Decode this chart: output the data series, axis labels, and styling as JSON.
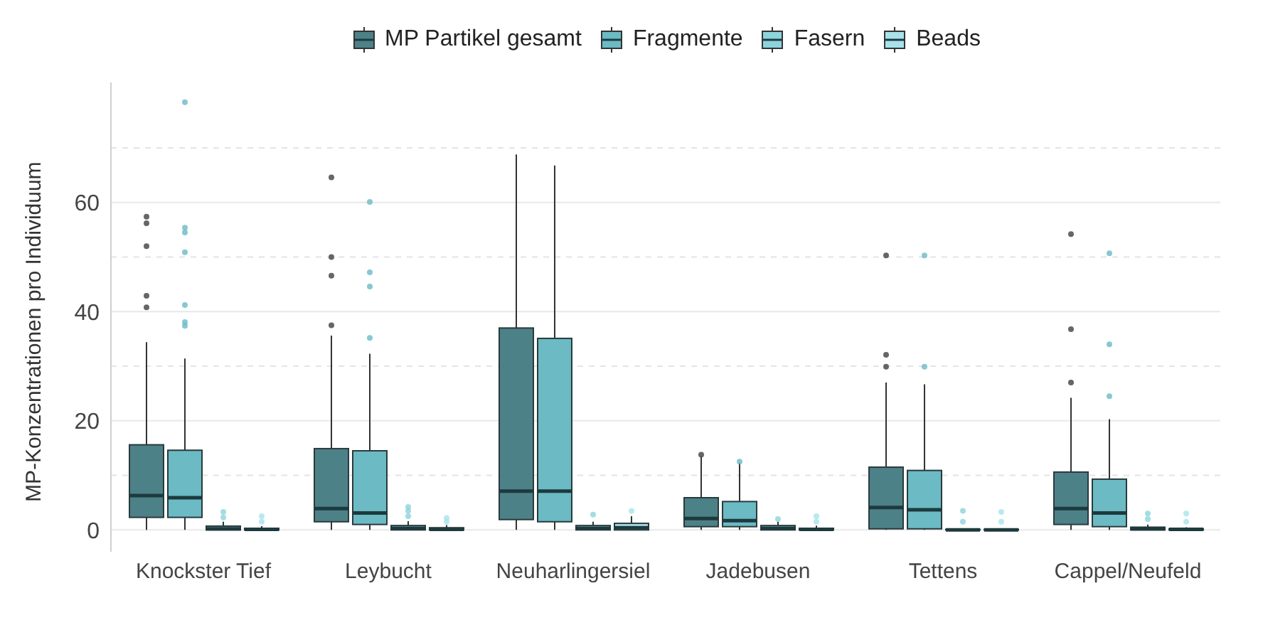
{
  "chart_data": {
    "type": "box",
    "ylabel": "MP-Konzentrationen pro Individuum",
    "categories": [
      "Knockster Tief",
      "Leybucht",
      "Neuharlingersiel",
      "Jadebusen",
      "Tettens",
      "Cappel/Neufeld"
    ],
    "ylim": [
      -4,
      82
    ],
    "yticks": [
      0,
      {
        "value": 10,
        "label": null
      },
      20,
      {
        "value": 30,
        "label": null
      },
      40,
      {
        "value": 50,
        "label": null
      },
      60,
      {
        "value": 70,
        "label": null
      }
    ],
    "grid": "y",
    "legend": "top",
    "series": [
      {
        "name": "MP Partikel gesamt",
        "color": "#4d8188",
        "boxes": [
          {
            "low": 0,
            "q1": 2.3,
            "median": 6.3,
            "q3": 15.6,
            "high": 34.4,
            "outliers": [
              57.4,
              56.2,
              52.0,
              42.9,
              40.8
            ]
          },
          {
            "low": 0,
            "q1": 1.5,
            "median": 3.9,
            "q3": 14.9,
            "high": 35.6,
            "outliers": [
              64.6,
              50.0,
              46.6,
              37.5
            ]
          },
          {
            "low": 0,
            "q1": 1.9,
            "median": 7.1,
            "q3": 37.0,
            "high": 68.8
          },
          {
            "low": 0,
            "q1": 0.6,
            "median": 2.1,
            "q3": 5.9,
            "high": 13.6,
            "outliers": [
              13.8
            ]
          },
          {
            "low": 0,
            "q1": 0.2,
            "median": 4.1,
            "q3": 11.5,
            "high": 27.0,
            "outliers": [
              50.3,
              32.1,
              29.9
            ]
          },
          {
            "low": 0,
            "q1": 1.0,
            "median": 3.9,
            "q3": 10.6,
            "high": 24.2,
            "outliers": [
              54.2,
              36.8,
              27.0
            ]
          }
        ]
      },
      {
        "name": "Fragmente",
        "color": "#6bbac4",
        "boxes": [
          {
            "low": 0,
            "q1": 2.3,
            "median": 5.9,
            "q3": 14.6,
            "high": 31.4,
            "outliers": [
              78.4,
              55.4,
              54.5,
              50.9,
              41.2,
              38.1,
              37.4
            ]
          },
          {
            "low": 0,
            "q1": 1.0,
            "median": 3.1,
            "q3": 14.5,
            "high": 32.3,
            "outliers": [
              60.1,
              47.2,
              44.6,
              35.2
            ]
          },
          {
            "low": 0,
            "q1": 1.5,
            "median": 7.1,
            "q3": 35.1,
            "high": 66.8
          },
          {
            "low": 0,
            "q1": 0.6,
            "median": 1.7,
            "q3": 5.2,
            "high": 12.3,
            "outliers": [
              12.5
            ]
          },
          {
            "low": 0,
            "q1": 0.2,
            "median": 3.7,
            "q3": 10.9,
            "high": 26.7,
            "outliers": [
              50.3,
              29.9
            ]
          },
          {
            "low": 0,
            "q1": 0.6,
            "median": 3.1,
            "q3": 9.3,
            "high": 20.3,
            "outliers": [
              50.7,
              34.0,
              24.5
            ]
          }
        ]
      },
      {
        "name": "Fasern",
        "color": "#8dd3dc",
        "boxes": [
          {
            "low": 0,
            "q1": 0,
            "median": 0.2,
            "q3": 0.7,
            "high": 1.5,
            "outliers": [
              2.3,
              3.3
            ]
          },
          {
            "low": 0,
            "q1": 0,
            "median": 0.3,
            "q3": 0.8,
            "high": 1.6,
            "outliers": [
              2.5,
              3.5,
              4.2
            ]
          },
          {
            "low": 0,
            "q1": 0,
            "median": 0.3,
            "q3": 0.8,
            "high": 1.5,
            "outliers": [
              2.8
            ]
          },
          {
            "low": 0,
            "q1": 0,
            "median": 0.3,
            "q3": 0.8,
            "high": 1.5,
            "outliers": [
              2.0
            ]
          },
          {
            "low": 0,
            "q1": 0,
            "median": 0,
            "q3": 0.1,
            "high": 0.2,
            "outliers": [
              1.5,
              3.5
            ]
          },
          {
            "low": 0,
            "q1": 0,
            "median": 0.2,
            "q3": 0.5,
            "high": 1.0,
            "outliers": [
              2.0,
              3.0
            ]
          }
        ]
      },
      {
        "name": "Beads",
        "color": "#a8e3ec",
        "boxes": [
          {
            "low": 0,
            "q1": 0,
            "median": 0.1,
            "q3": 0.3,
            "high": 0.7,
            "outliers": [
              1.5,
              2.5
            ]
          },
          {
            "low": 0,
            "q1": 0,
            "median": 0.1,
            "q3": 0.4,
            "high": 0.9,
            "outliers": [
              1.5,
              2.2
            ]
          },
          {
            "low": 0,
            "q1": 0,
            "median": 0.4,
            "q3": 1.2,
            "high": 2.5,
            "outliers": [
              3.5
            ]
          },
          {
            "low": 0,
            "q1": 0,
            "median": 0.1,
            "q3": 0.3,
            "high": 0.8,
            "outliers": [
              1.5,
              2.5
            ]
          },
          {
            "low": 0,
            "q1": 0,
            "median": 0,
            "q3": 0.1,
            "high": 0.2,
            "outliers": [
              1.5,
              3.3
            ]
          },
          {
            "low": 0,
            "q1": 0,
            "median": 0.1,
            "q3": 0.2,
            "high": 0.5,
            "outliers": [
              1.5,
              3.0
            ]
          }
        ]
      }
    ]
  }
}
